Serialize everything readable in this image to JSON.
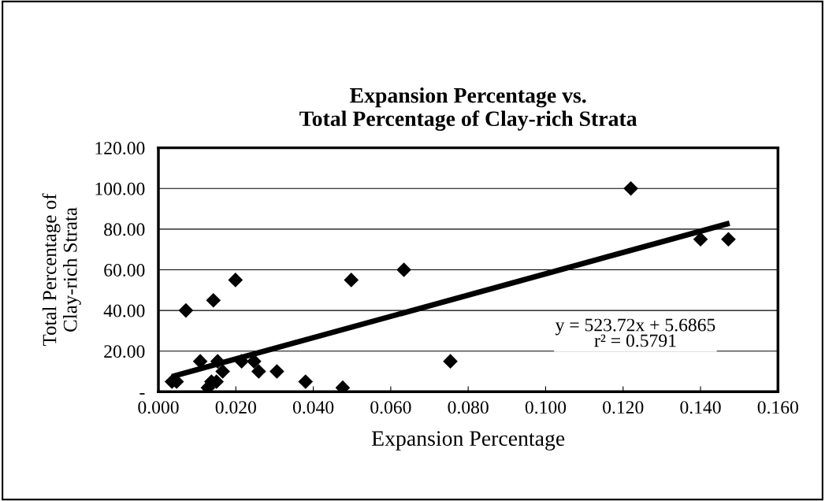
{
  "chart_data": {
    "type": "scatter",
    "title": "Expansion Percentage vs.\nTotal Percentage of Clay-rich Strata",
    "xlabel": "Expansion Percentage",
    "ylabel": "Total Percentage of\nClay-rich Strata",
    "series": [
      {
        "color": "#000000",
        "marker": "diamond",
        "x": [
          0.0035,
          0.0047,
          0.0071,
          0.0108,
          0.0128,
          0.0137,
          0.0142,
          0.015,
          0.0153,
          0.0166,
          0.0199,
          0.0215,
          0.0247,
          0.0259,
          0.0306,
          0.0374,
          0.038,
          0.0476,
          0.0498,
          0.0634,
          0.0754,
          0.122,
          0.14,
          0.1472
        ],
        "values": [
          5,
          5,
          40,
          15,
          2,
          5,
          45,
          5,
          15,
          10,
          55,
          15,
          15,
          10,
          10,
          null,
          5,
          2,
          55,
          60,
          15,
          100,
          75,
          75
        ]
      },
      {
        "type": "line",
        "color": "#000000",
        "marker": "none",
        "x": [
          0.0035,
          0.1475
        ],
        "values": [
          7.5,
          82.9
        ]
      }
    ],
    "xlim": [
      0,
      0.16
    ],
    "xticks": [
      {
        "value": 0,
        "label": "0.000"
      },
      {
        "value": 0.02,
        "label": "0.020"
      },
      {
        "value": 0.04,
        "label": "0.040"
      },
      {
        "value": 0.06,
        "label": "0.060"
      },
      {
        "value": 0.08,
        "label": "0.080"
      },
      {
        "value": 0.1,
        "label": "0.100"
      },
      {
        "value": 0.12,
        "label": "0.120"
      },
      {
        "value": 0.14,
        "label": "0.140"
      },
      {
        "value": 0.16,
        "label": "0.160"
      }
    ],
    "ylim": [
      0,
      120
    ],
    "yticks": [
      {
        "value": 0,
        "label": "-"
      },
      {
        "value": 20,
        "label": "20.00"
      },
      {
        "value": 40,
        "label": "40.00"
      },
      {
        "value": 60,
        "label": "60.00"
      },
      {
        "value": 80,
        "label": "80.00"
      },
      {
        "value": 100,
        "label": "100.00"
      },
      {
        "value": 120,
        "label": "120.00"
      }
    ],
    "grid": "y",
    "legend": false,
    "annotations": [
      "y = 523.72x + 5.6865\nr² = 0.5791"
    ]
  }
}
